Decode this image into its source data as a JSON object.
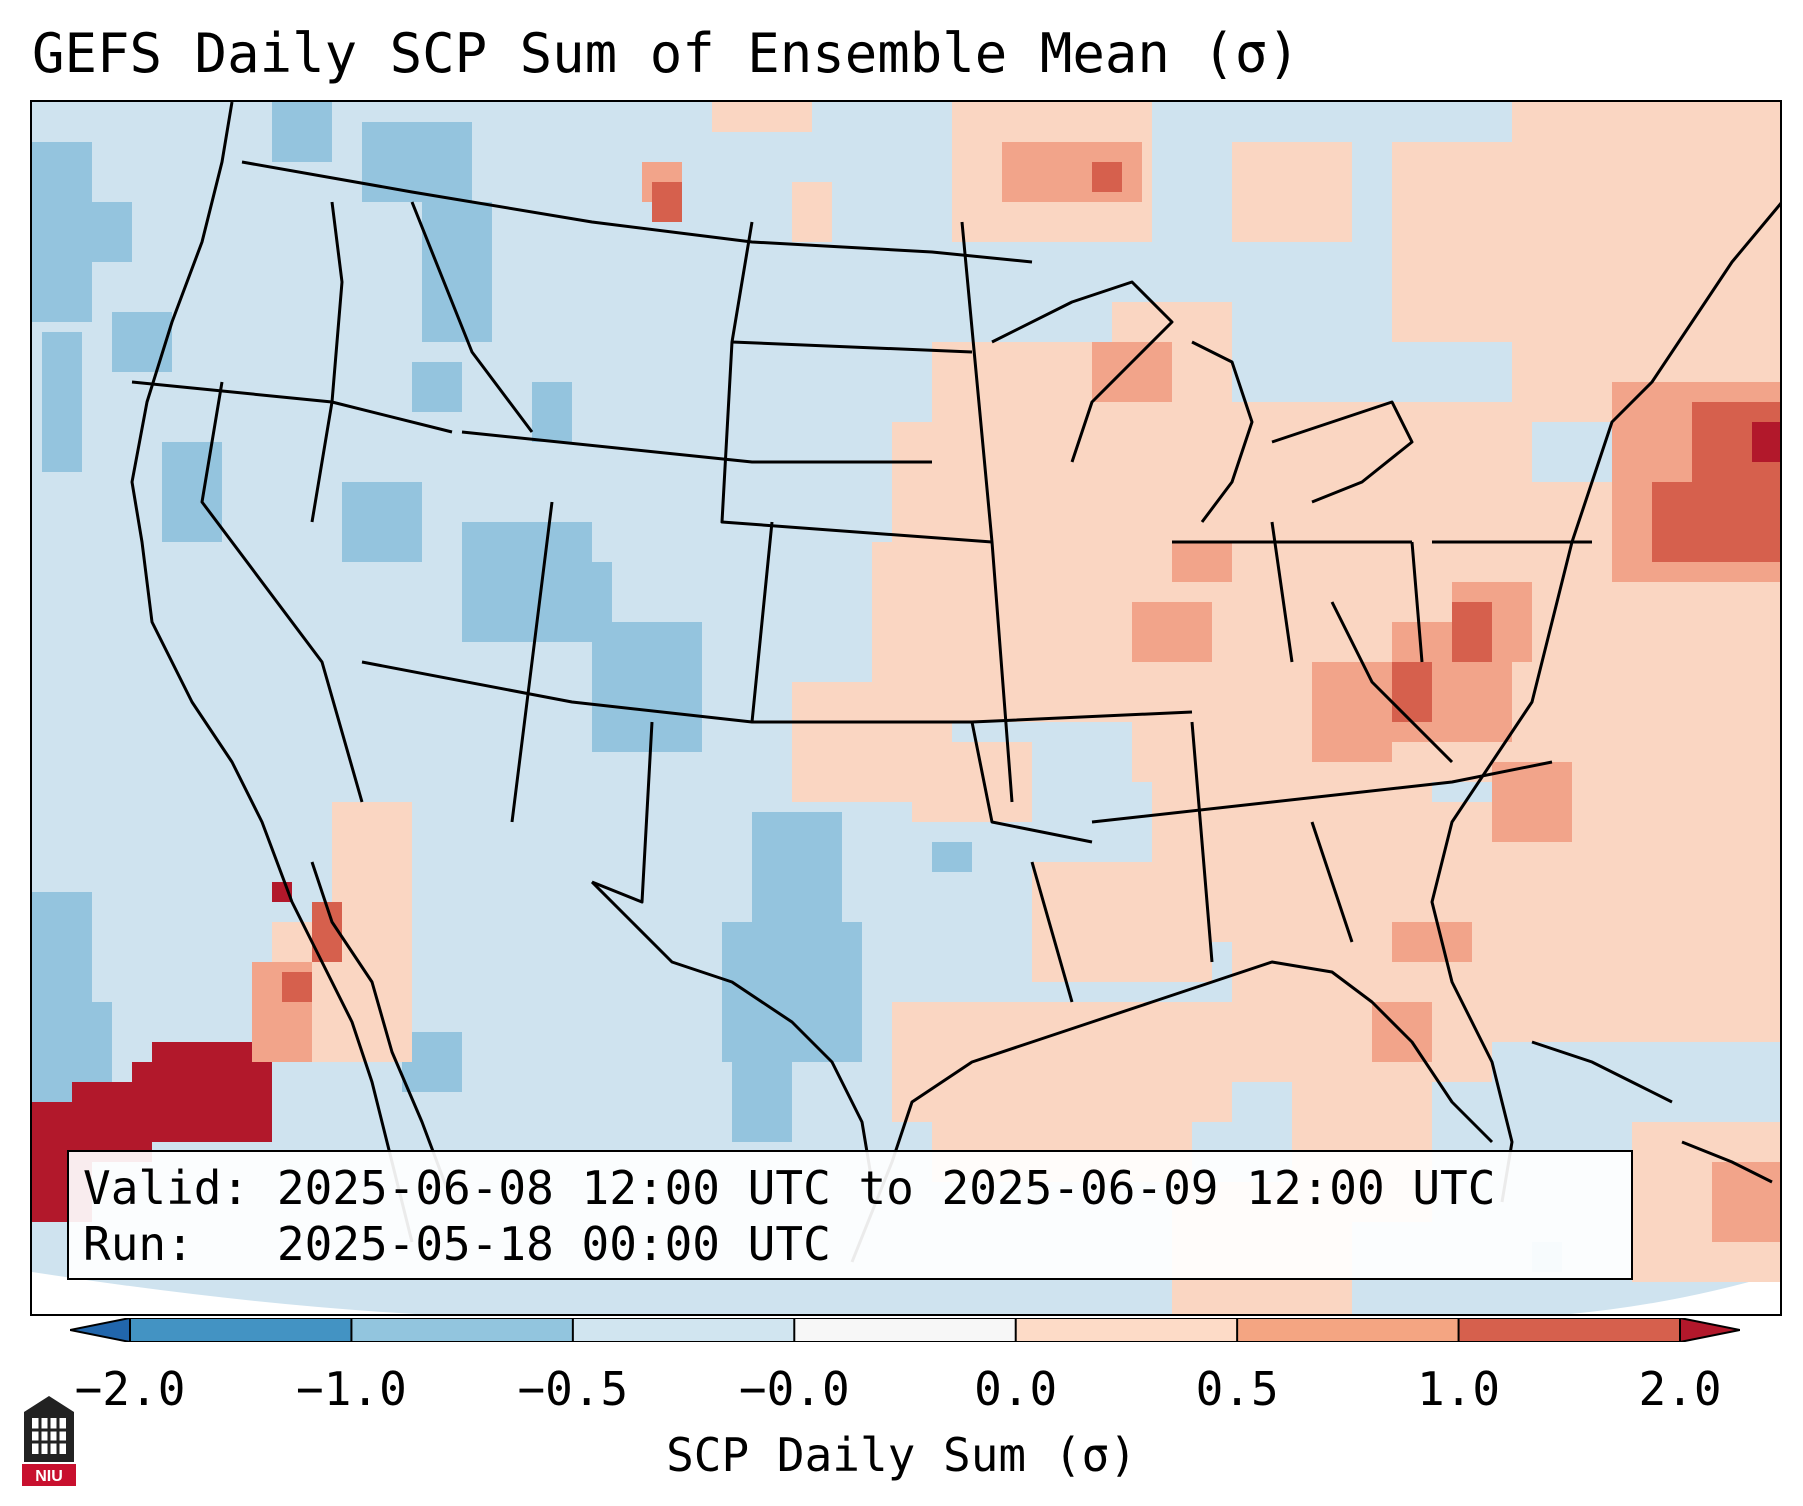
{
  "title": "GEFS Daily SCP Sum of Ensemble Mean (σ)",
  "info": {
    "valid_label": "Valid:",
    "valid_value": "2025-06-08 12:00 UTC to 2025-06-09 12:00 UTC",
    "run_label": "Run:",
    "run_value": "2025-05-18 00:00 UTC"
  },
  "colorbar": {
    "label": "SCP Daily Sum (σ)",
    "ticks": [
      "−2.0",
      "−1.0",
      "−0.5",
      "−0.0",
      "0.0",
      "0.5",
      "1.0",
      "2.0"
    ],
    "colors": [
      "#4393c3",
      "#92c5de",
      "#d1e5f0",
      "#f7f7f7",
      "#fddbc7",
      "#f4a582",
      "#d6604d",
      "#b2182b"
    ],
    "extend_low_color": "#2166ac",
    "extend_high_color": "#b2182b"
  },
  "logo": {
    "text": "NIU",
    "color": "#c8102e"
  },
  "map": {
    "background_color": "#cfe3ef",
    "positive_light": "#fad6c2",
    "positive_mid": "#f2a48a",
    "positive_strong": "#d6604d",
    "positive_extreme": "#b2182b",
    "negative_mid": "#94c4de"
  }
}
